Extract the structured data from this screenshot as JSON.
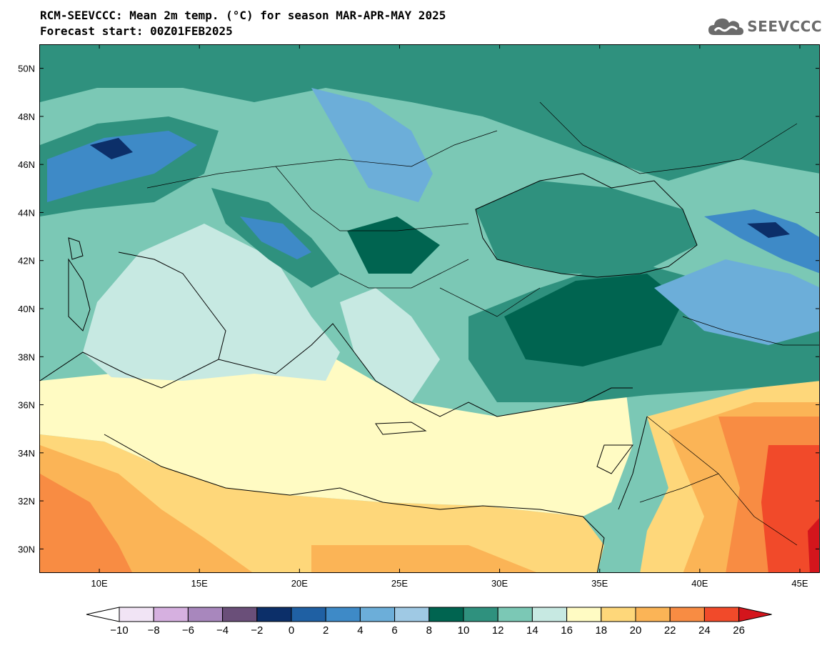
{
  "header": {
    "title_line1": "RCM-SEEVCCC: Mean 2m temp. (°C) for season MAR-APR-MAY 2025",
    "title_line2": "Forecast start: 00Z01FEB2025"
  },
  "logo": {
    "text": "SEEVCCC",
    "icon": "cloud-icon"
  },
  "map": {
    "region": "Eastern Mediterranean / Balkans / Black Sea",
    "lon_range": [
      7,
      46
    ],
    "lat_range": [
      29,
      51
    ],
    "lon_ticks": [
      {
        "value": 10,
        "label": "10E"
      },
      {
        "value": 15,
        "label": "15E"
      },
      {
        "value": 20,
        "label": "20E"
      },
      {
        "value": 25,
        "label": "25E"
      },
      {
        "value": 30,
        "label": "30E"
      },
      {
        "value": 35,
        "label": "35E"
      },
      {
        "value": 40,
        "label": "40E"
      },
      {
        "value": 45,
        "label": "45E"
      }
    ],
    "lat_ticks": [
      {
        "value": 30,
        "label": "30N"
      },
      {
        "value": 32,
        "label": "32N"
      },
      {
        "value": 34,
        "label": "34N"
      },
      {
        "value": 36,
        "label": "36N"
      },
      {
        "value": 38,
        "label": "38N"
      },
      {
        "value": 40,
        "label": "40N"
      },
      {
        "value": 42,
        "label": "42N"
      },
      {
        "value": 44,
        "label": "44N"
      },
      {
        "value": 46,
        "label": "46N"
      },
      {
        "value": 48,
        "label": "48N"
      },
      {
        "value": 50,
        "label": "50N"
      }
    ]
  },
  "colorbar": {
    "units": "°C",
    "bins": [
      {
        "from": -10,
        "to": -8,
        "color": "#f1e4f5"
      },
      {
        "from": -8,
        "to": -6,
        "color": "#d6b0e0"
      },
      {
        "from": -6,
        "to": -4,
        "color": "#a887bd"
      },
      {
        "from": -4,
        "to": -2,
        "color": "#6a4f79"
      },
      {
        "from": -2,
        "to": 0,
        "color": "#0c2f69"
      },
      {
        "from": 0,
        "to": 2,
        "color": "#1f60a3"
      },
      {
        "from": 2,
        "to": 4,
        "color": "#3e8ac7"
      },
      {
        "from": 4,
        "to": 6,
        "color": "#6caed9"
      },
      {
        "from": 6,
        "to": 8,
        "color": "#9fc9e4"
      },
      {
        "from": 8,
        "to": 10,
        "color": "#006450"
      },
      {
        "from": 10,
        "to": 12,
        "color": "#2f917e"
      },
      {
        "from": 12,
        "to": 14,
        "color": "#7bc8b5"
      },
      {
        "from": 14,
        "to": 16,
        "color": "#c7e9e2"
      },
      {
        "from": 16,
        "to": 18,
        "color": "#fffbc3"
      },
      {
        "from": 18,
        "to": 20,
        "color": "#fed77a"
      },
      {
        "from": 20,
        "to": 22,
        "color": "#fbb456"
      },
      {
        "from": 22,
        "to": 24,
        "color": "#f88c43"
      },
      {
        "from": 24,
        "to": 26,
        "color": "#f14a2a"
      }
    ],
    "under_color": "#ffffff",
    "over_color": "#d4151c",
    "tick_labels": [
      "−10",
      "−8",
      "−6",
      "−4",
      "−2",
      "0",
      "2",
      "4",
      "6",
      "8",
      "10",
      "12",
      "14",
      "16",
      "18",
      "20",
      "22",
      "24",
      "26"
    ]
  }
}
